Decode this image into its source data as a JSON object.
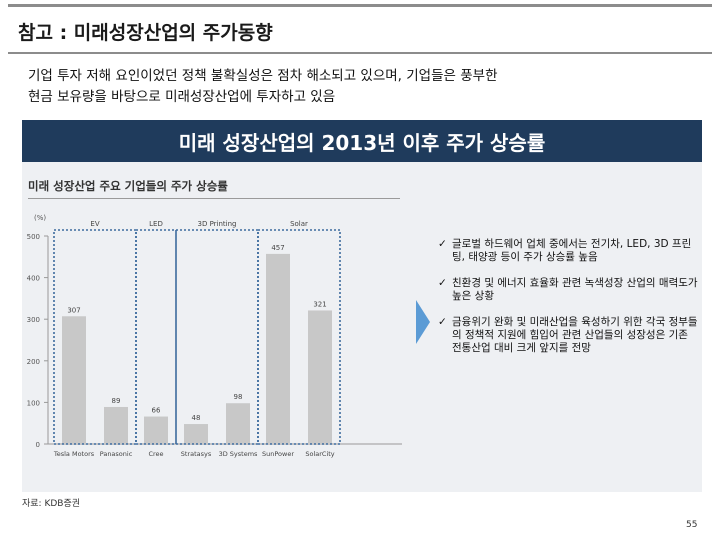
{
  "header": {
    "title": "참고 : 미래성장산업의 주가동향"
  },
  "intro": {
    "line1": "기업 투자 저해 요인이었던 정책 불확실성은 점차 해소되고 있으며, 기업들은 풍부한",
    "line2": "현금 보유량을 바탕으로 미래성장산업에 투자하고 있음"
  },
  "banner": {
    "text": "미래 성장산업의 2013년 이후 주가 상승률"
  },
  "chart_data": {
    "type": "bar",
    "title": "미래 성장산업 주요 기업들의 주가 상승률",
    "ylabel": "(%)",
    "ylim": [
      0,
      500
    ],
    "yticks": [
      "0",
      "100",
      "200",
      "300",
      "400",
      "500"
    ],
    "groups": [
      {
        "label": "EV",
        "categories": [
          "Tesla Motors",
          "Panasonic"
        ]
      },
      {
        "label": "LED",
        "categories": [
          "Cree"
        ]
      },
      {
        "label": "3D Printing",
        "categories": [
          "Stratasys",
          "3D Systems"
        ]
      },
      {
        "label": "Solar",
        "categories": [
          "SunPower",
          "SolarCity"
        ]
      }
    ],
    "categories": [
      "Tesla Motors",
      "Panasonic",
      "Cree",
      "Stratasys",
      "3D Systems",
      "SunPower",
      "SolarCity"
    ],
    "values": [
      307,
      89,
      66,
      48,
      98,
      457,
      321
    ],
    "bar_color": "#c8c8c8",
    "group_border_color": "#3d6b9e"
  },
  "bullets": [
    {
      "check": "✓",
      "text": "글로벌 하드웨어 업체 중에서는 전기차, LED, 3D 프린팅, 태양광 등이 주가 상승률 높음"
    },
    {
      "check": "✓",
      "text": "친환경 및 에너지 효율화 관련 녹색성장 산업의 매력도가 높은 상황"
    },
    {
      "check": "✓",
      "text": "금융위기 완화 및 미래산업을 육성하기 위한 각국 정부들의 정책적 지원에 힘입어 관련 산업들의 성장성은 기존 전통산업 대비 크게 앞지를 전망"
    }
  ],
  "footer": {
    "source": "자료: KDB증권",
    "page": "55"
  },
  "colors": {
    "banner_bg": "#1f3b5c",
    "panel_bg": "#eef0f3",
    "arrow": "#5b9bd5"
  }
}
